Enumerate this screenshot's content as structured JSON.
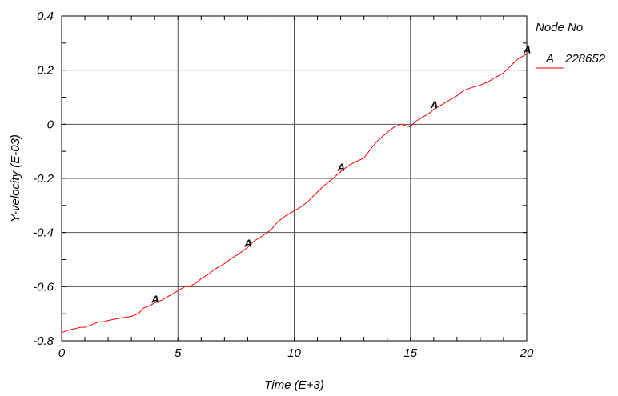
{
  "chart_data": {
    "type": "line",
    "xlabel": "Time (E+3)",
    "ylabel": "Y-velocity (E-03)",
    "xlim": [
      0,
      20
    ],
    "ylim": [
      -0.8,
      0.4
    ],
    "x_ticks": [
      "0",
      "5",
      "10",
      "15",
      "20"
    ],
    "y_ticks": [
      "-0.8",
      "-0.6",
      "-0.4",
      "-0.2",
      "0",
      "0.2",
      "0.4"
    ],
    "grid": true,
    "legend": {
      "title": "Node No",
      "placement": "right",
      "entries": [
        {
          "marker": "A",
          "label": "228652"
        }
      ]
    },
    "series": [
      {
        "name": "228652",
        "marker": "A",
        "color": "#ff0000",
        "x": [
          0,
          0.3,
          0.6,
          0.8,
          1.0,
          1.3,
          1.6,
          1.8,
          2.0,
          2.3,
          2.6,
          3.0,
          3.3,
          3.5,
          3.8,
          4.0,
          4.3,
          4.6,
          5.0,
          5.3,
          5.5,
          5.8,
          6.0,
          6.3,
          6.6,
          7.0,
          7.3,
          7.6,
          8.0,
          8.3,
          8.6,
          9.0,
          9.3,
          9.6,
          10.0,
          10.3,
          10.6,
          11.0,
          11.3,
          11.6,
          12.0,
          12.3,
          12.6,
          13.0,
          13.3,
          13.6,
          14.0,
          14.3,
          14.6,
          15.0,
          15.2,
          15.5,
          15.8,
          16.0,
          16.3,
          16.6,
          17.0,
          17.3,
          17.6,
          18.0,
          18.3,
          18.6,
          19.0,
          19.3,
          19.6,
          20.0
        ],
        "y": [
          -0.77,
          -0.76,
          -0.755,
          -0.75,
          -0.75,
          -0.74,
          -0.73,
          -0.73,
          -0.725,
          -0.72,
          -0.715,
          -0.71,
          -0.7,
          -0.68,
          -0.67,
          -0.66,
          -0.65,
          -0.635,
          -0.615,
          -0.6,
          -0.6,
          -0.585,
          -0.57,
          -0.555,
          -0.535,
          -0.515,
          -0.495,
          -0.48,
          -0.455,
          -0.43,
          -0.415,
          -0.39,
          -0.36,
          -0.34,
          -0.32,
          -0.305,
          -0.285,
          -0.25,
          -0.225,
          -0.205,
          -0.175,
          -0.155,
          -0.14,
          -0.125,
          -0.09,
          -0.06,
          -0.03,
          -0.01,
          0.0,
          -0.01,
          0.01,
          0.025,
          0.04,
          0.055,
          0.07,
          0.085,
          0.105,
          0.125,
          0.135,
          0.145,
          0.155,
          0.17,
          0.19,
          0.215,
          0.24,
          0.26
        ]
      }
    ],
    "markers": [
      {
        "label": "A",
        "x": 4,
        "y": -0.663
      },
      {
        "label": "A",
        "x": 8,
        "y": -0.455
      },
      {
        "label": "A",
        "x": 12,
        "y": -0.175
      },
      {
        "label": "A",
        "x": 16,
        "y": 0.055
      },
      {
        "label": "A",
        "x": 20,
        "y": 0.26
      }
    ]
  }
}
